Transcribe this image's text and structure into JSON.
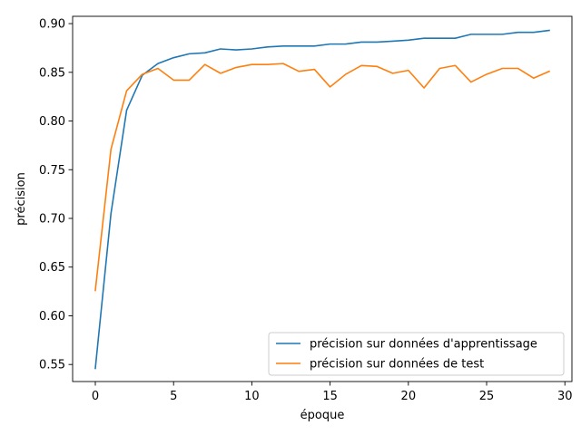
{
  "chart_data": {
    "type": "line",
    "title": "",
    "xlabel": "époque",
    "ylabel": "précision",
    "xlim": [
      -1.45,
      30.45
    ],
    "ylim": [
      0.5325,
      0.9075
    ],
    "xticks": [
      0,
      5,
      10,
      15,
      20,
      25,
      30
    ],
    "yticks": [
      0.55,
      0.6,
      0.65,
      0.7,
      0.75,
      0.8,
      0.85,
      0.9
    ],
    "grid": false,
    "legend_position": "lower-right",
    "x": [
      0,
      1,
      2,
      3,
      4,
      5,
      6,
      7,
      8,
      9,
      10,
      11,
      12,
      13,
      14,
      15,
      16,
      17,
      18,
      19,
      20,
      21,
      22,
      23,
      24,
      25,
      26,
      27,
      28,
      29
    ],
    "series": [
      {
        "name": "précision sur données d'apprentissage",
        "color": "#1f77b4",
        "values": [
          0.546,
          0.705,
          0.811,
          0.847,
          0.859,
          0.865,
          0.869,
          0.87,
          0.874,
          0.873,
          0.874,
          0.876,
          0.877,
          0.877,
          0.877,
          0.879,
          0.879,
          0.881,
          0.881,
          0.882,
          0.883,
          0.885,
          0.885,
          0.885,
          0.889,
          0.889,
          0.889,
          0.891,
          0.891,
          0.893
        ]
      },
      {
        "name": "précision sur données de test",
        "color": "#ff7f0e",
        "values": [
          0.626,
          0.771,
          0.831,
          0.848,
          0.854,
          0.842,
          0.842,
          0.858,
          0.849,
          0.855,
          0.858,
          0.858,
          0.859,
          0.851,
          0.853,
          0.835,
          0.848,
          0.857,
          0.856,
          0.849,
          0.852,
          0.834,
          0.854,
          0.857,
          0.84,
          0.848,
          0.854,
          0.854,
          0.844,
          0.851
        ]
      }
    ]
  }
}
